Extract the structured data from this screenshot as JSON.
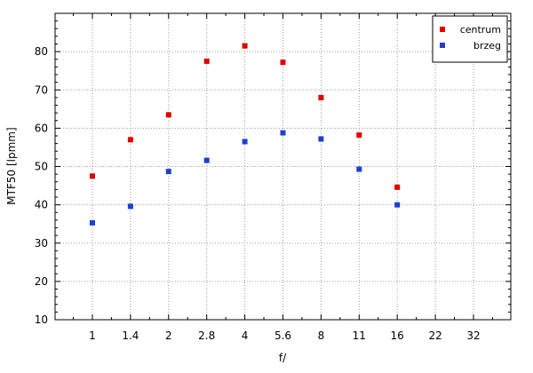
{
  "chart_data": {
    "type": "scatter",
    "title": "",
    "xlabel": "f/",
    "ylabel": "MTF50 [lpmm]",
    "x_categories": [
      "1",
      "1.4",
      "2",
      "2.8",
      "4",
      "5.6",
      "8",
      "11",
      "16",
      "22",
      "32"
    ],
    "ylim": [
      10,
      90
    ],
    "yticks": [
      10,
      20,
      30,
      40,
      50,
      60,
      70,
      80
    ],
    "grid": true,
    "legend_position": "top-right",
    "series": [
      {
        "name": "centrum",
        "color": "#e00000",
        "x": [
          "1",
          "1.4",
          "2",
          "2.8",
          "4",
          "5.6",
          "8",
          "11",
          "16"
        ],
        "y": [
          47.5,
          57.0,
          63.5,
          77.5,
          81.5,
          77.2,
          68.0,
          58.2,
          44.6
        ]
      },
      {
        "name": "brzeg",
        "color": "#1e3fd0",
        "x": [
          "1",
          "1.4",
          "2",
          "2.8",
          "4",
          "5.6",
          "8",
          "11",
          "16"
        ],
        "y": [
          35.3,
          39.6,
          48.7,
          51.6,
          56.5,
          58.8,
          57.2,
          49.3,
          40.0
        ]
      }
    ]
  }
}
